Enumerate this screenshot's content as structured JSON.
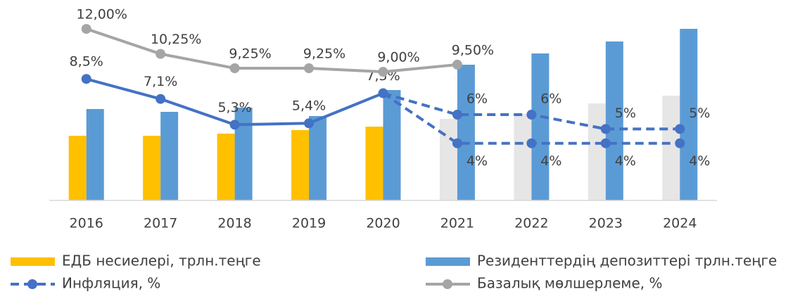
{
  "chart_data": {
    "type": "bar_line",
    "categories": [
      "2016",
      "2017",
      "2018",
      "2019",
      "2020",
      "2021",
      "2022",
      "2023",
      "2024"
    ],
    "ylim": [
      0,
      250
    ],
    "y2lim": [
      0,
      12.3
    ],
    "series": [
      {
        "name": "ЕДБ несиелері, трлн.теңге",
        "type": "bar",
        "colors": [
          "#ffc000",
          "#ffc000",
          "#ffc000",
          "#ffc000",
          "#ffc000",
          "#e7e6e6",
          "#e7e6e6",
          "#e7e6e6",
          "#e7e6e6"
        ],
        "values": [
          92,
          92,
          95,
          100,
          105,
          116,
          123,
          138,
          149
        ]
      },
      {
        "name": "Резиденттердің депозиттері трлн.теңге",
        "type": "bar",
        "color": "#5b9bd5",
        "values": [
          130,
          126,
          132,
          120,
          157,
          193,
          209,
          226,
          244
        ]
      },
      {
        "name": "Инфляция, %",
        "type": "line",
        "axis": "y2",
        "color": "#4472c4",
        "values": [
          8.5,
          7.1,
          5.3,
          5.4,
          7.5,
          null,
          null,
          null,
          null
        ],
        "value_labels": [
          "8,5%",
          "7,1%",
          "5,3%",
          "5,4%",
          "7,5%",
          null,
          null,
          null,
          null
        ]
      },
      {
        "type": "line",
        "axis": "y2",
        "color": "#4472c4",
        "dashed": true,
        "continues": 2,
        "values": [
          null,
          null,
          null,
          null,
          null,
          6,
          6,
          5,
          5
        ],
        "value_labels": [
          null,
          null,
          null,
          null,
          null,
          "6%",
          "6%",
          "5%",
          "5%"
        ]
      },
      {
        "type": "line",
        "axis": "y2",
        "color": "#4472c4",
        "dashed": true,
        "continues": 2,
        "values": [
          null,
          null,
          null,
          null,
          null,
          4,
          4,
          4,
          4
        ],
        "value_labels": [
          null,
          null,
          null,
          null,
          null,
          "4%",
          "4%",
          "4%",
          "4%"
        ]
      },
      {
        "name": "Базалық мөлшерлеме, %",
        "type": "line",
        "axis": "y2",
        "color": "#a5a5a5",
        "values": [
          12,
          10.25,
          9.25,
          9.25,
          9.0,
          9.5,
          null,
          null,
          null
        ],
        "value_labels": [
          "12,00%",
          "10,25%",
          "9,25%",
          "9,25%",
          "9,00%",
          "9,50%",
          null,
          null,
          null
        ]
      }
    ]
  }
}
